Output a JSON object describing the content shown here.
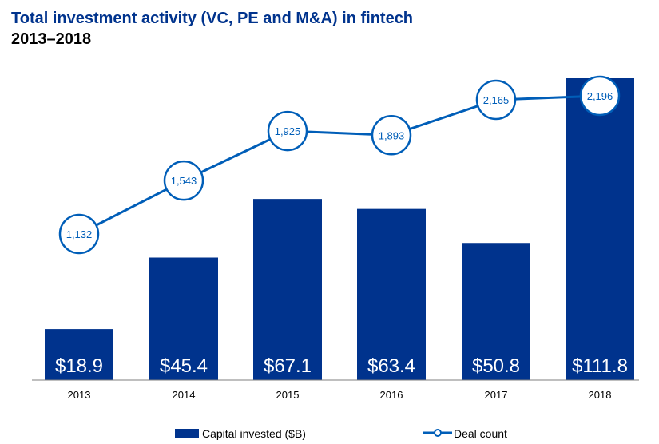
{
  "chart_data": {
    "type": "bar",
    "title": "Total investment activity (VC, PE and M&A) in fintech",
    "subtitle": "2013–2018",
    "categories": [
      "2013",
      "2014",
      "2015",
      "2016",
      "2017",
      "2018"
    ],
    "series": [
      {
        "name": "Capital invested ($B)",
        "type": "bar",
        "values": [
          18.9,
          45.4,
          67.1,
          63.4,
          50.8,
          111.8
        ],
        "labels": [
          "$18.9",
          "$45.4",
          "$67.1",
          "$63.4",
          "$50.8",
          "$111.8"
        ],
        "color": "#00338d"
      },
      {
        "name": "Deal count",
        "type": "line",
        "values": [
          1132,
          1543,
          1925,
          1893,
          2165,
          2196
        ],
        "labels": [
          "1,132",
          "1,543",
          "1,925",
          "1,893",
          "2,165",
          "2,196"
        ],
        "color": "#005eb8"
      }
    ],
    "legend": "bottom",
    "grid": false
  }
}
